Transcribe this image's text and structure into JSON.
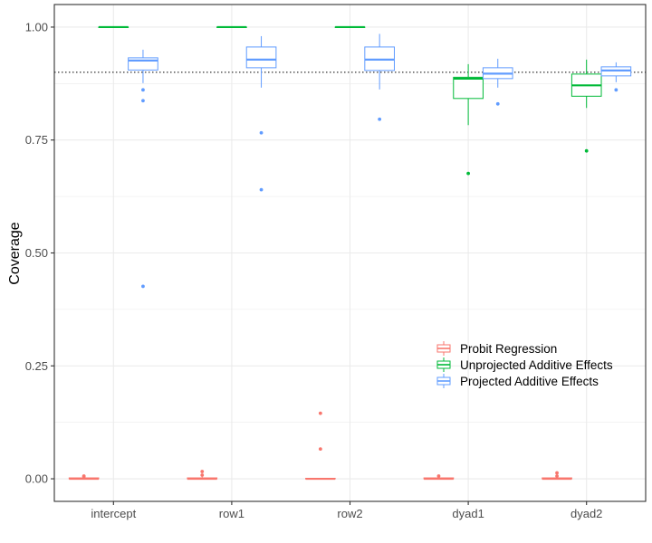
{
  "chart_data": {
    "type": "boxplot",
    "title": "",
    "xlabel": "",
    "ylabel": "Coverage",
    "ylim": [
      -0.05,
      1.05
    ],
    "yticks": [
      "0.00",
      "0.25",
      "0.50",
      "0.75",
      "1.00"
    ],
    "reference_line": 0.9,
    "categories": [
      "intercept",
      "row1",
      "row2",
      "dyad1",
      "dyad2"
    ],
    "grid": true,
    "legend_position": "inside-right",
    "series": [
      {
        "name": "Probit Regression",
        "color": "#F8766D",
        "boxes": [
          {
            "min": 0.0,
            "q1": 0.0,
            "median": 0.0,
            "q3": 0.002,
            "max": 0.004,
            "outliers": [
              0.006,
              0.005
            ]
          },
          {
            "min": 0.0,
            "q1": 0.0,
            "median": 0.0,
            "q3": 0.002,
            "max": 0.004,
            "outliers": [
              0.016,
              0.008
            ]
          },
          {
            "min": 0.0,
            "q1": 0.0,
            "median": 0.0,
            "q3": 0.001,
            "max": 0.002,
            "outliers": [
              0.145,
              0.066
            ]
          },
          {
            "min": 0.0,
            "q1": 0.0,
            "median": 0.0,
            "q3": 0.002,
            "max": 0.004,
            "outliers": [
              0.006
            ]
          },
          {
            "min": 0.0,
            "q1": 0.0,
            "median": 0.0,
            "q3": 0.002,
            "max": 0.004,
            "outliers": [
              0.013,
              0.006
            ]
          }
        ]
      },
      {
        "name": "Unprojected Additive Effects",
        "color": "#00BA38",
        "boxes": [
          {
            "min": 1.0,
            "q1": 1.0,
            "median": 1.0,
            "q3": 1.0,
            "max": 1.0,
            "outliers": []
          },
          {
            "min": 1.0,
            "q1": 1.0,
            "median": 1.0,
            "q3": 1.0,
            "max": 1.0,
            "outliers": []
          },
          {
            "min": 1.0,
            "q1": 1.0,
            "median": 1.0,
            "q3": 1.0,
            "max": 1.0,
            "outliers": []
          },
          {
            "min": 0.783,
            "q1": 0.842,
            "median": 0.886,
            "q3": 0.889,
            "max": 0.918,
            "outliers": [
              0.676
            ]
          },
          {
            "min": 0.821,
            "q1": 0.847,
            "median": 0.871,
            "q3": 0.896,
            "max": 0.928,
            "outliers": [
              0.726
            ]
          }
        ]
      },
      {
        "name": "Projected Additive Effects",
        "color": "#619CFF",
        "boxes": [
          {
            "min": 0.876,
            "q1": 0.905,
            "median": 0.926,
            "q3": 0.932,
            "max": 0.95,
            "outliers": [
              0.861,
              0.837,
              0.426
            ]
          },
          {
            "min": 0.866,
            "q1": 0.91,
            "median": 0.928,
            "q3": 0.956,
            "max": 0.98,
            "outliers": [
              0.766,
              0.64
            ]
          },
          {
            "min": 0.862,
            "q1": 0.904,
            "median": 0.928,
            "q3": 0.956,
            "max": 0.985,
            "outliers": [
              0.796
            ]
          },
          {
            "min": 0.866,
            "q1": 0.886,
            "median": 0.897,
            "q3": 0.91,
            "max": 0.93,
            "outliers": [
              0.83
            ]
          },
          {
            "min": 0.878,
            "q1": 0.892,
            "median": 0.904,
            "q3": 0.912,
            "max": 0.922,
            "outliers": [
              0.861
            ]
          }
        ]
      }
    ]
  }
}
